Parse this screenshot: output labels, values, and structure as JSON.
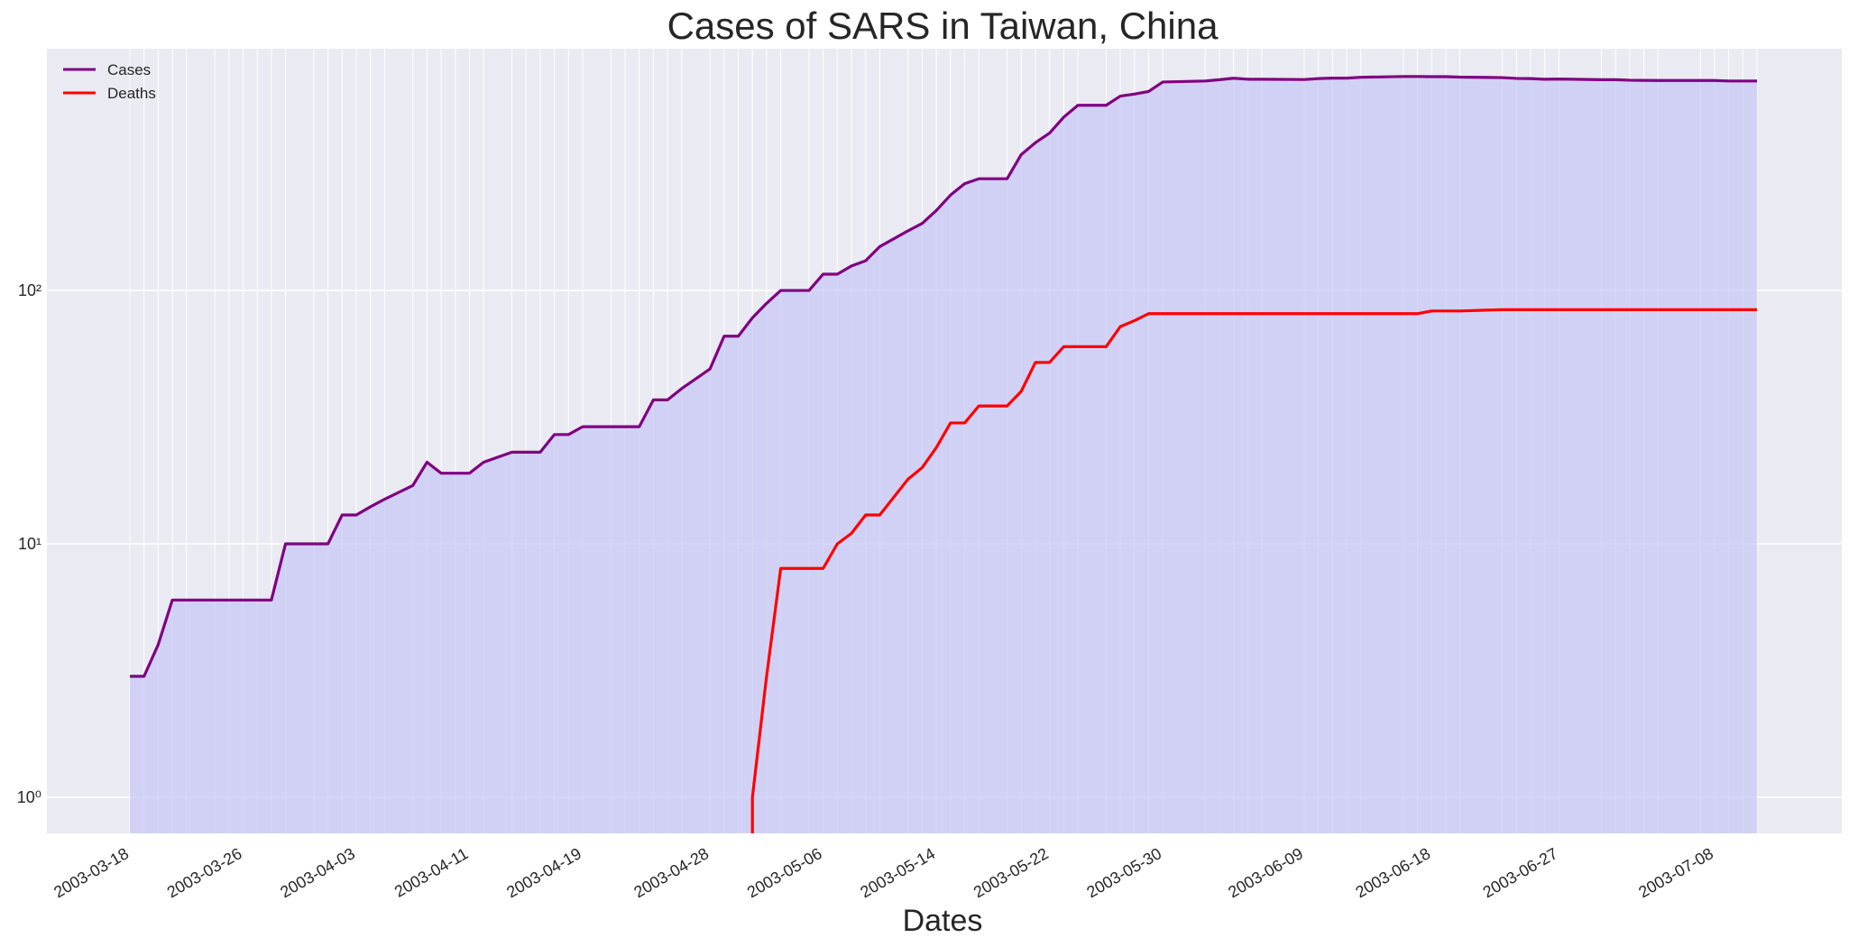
{
  "chart_data": {
    "type": "line",
    "title": "Cases of SARS in Taiwan, China",
    "xlabel": "Dates",
    "ylabel": "",
    "yscale": "log",
    "ylim": [
      0.72,
      900
    ],
    "grid": true,
    "legend_position": "top-left",
    "fill_under": "Cases",
    "colors": {
      "Cases": "#800080",
      "Deaths": "#ff0000",
      "fill": "#c8c8f5",
      "background": "#eaeaf2",
      "grid": "#ffffff"
    },
    "xtick_labels": [
      "2003-03-18",
      "2003-03-26",
      "2003-04-03",
      "2003-04-11",
      "2003-04-19",
      "2003-04-28",
      "2003-05-06",
      "2003-05-14",
      "2003-05-22",
      "2003-05-30",
      "2003-06-09",
      "2003-06-18",
      "2003-06-27",
      "2003-07-08"
    ],
    "ytick_labels": [
      {
        "value": 1,
        "label": "10⁰"
      },
      {
        "value": 10,
        "label": "10¹"
      },
      {
        "value": 100,
        "label": "10²"
      }
    ],
    "x": [
      "2003-03-18",
      "2003-03-19",
      "2003-03-20",
      "2003-03-21",
      "2003-03-22",
      "2003-03-24",
      "2003-03-25",
      "2003-03-26",
      "2003-03-27",
      "2003-03-28",
      "2003-03-29",
      "2003-03-31",
      "2003-04-01",
      "2003-04-02",
      "2003-04-03",
      "2003-04-04",
      "2003-04-05",
      "2003-04-07",
      "2003-04-08",
      "2003-04-09",
      "2003-04-10",
      "2003-04-11",
      "2003-04-12",
      "2003-04-14",
      "2003-04-15",
      "2003-04-16",
      "2003-04-17",
      "2003-04-18",
      "2003-04-19",
      "2003-04-21",
      "2003-04-22",
      "2003-04-23",
      "2003-04-24",
      "2003-04-25",
      "2003-04-26",
      "2003-04-28",
      "2003-04-29",
      "2003-04-30",
      "2003-05-01",
      "2003-05-02",
      "2003-05-03",
      "2003-05-05",
      "2003-05-06",
      "2003-05-07",
      "2003-05-08",
      "2003-05-09",
      "2003-05-10",
      "2003-05-12",
      "2003-05-13",
      "2003-05-14",
      "2003-05-15",
      "2003-05-16",
      "2003-05-17",
      "2003-05-19",
      "2003-05-20",
      "2003-05-21",
      "2003-05-22",
      "2003-05-23",
      "2003-05-24",
      "2003-05-26",
      "2003-05-27",
      "2003-05-28",
      "2003-05-29",
      "2003-05-30",
      "2003-06-02",
      "2003-06-03",
      "2003-06-04",
      "2003-06-05",
      "2003-06-06",
      "2003-06-09",
      "2003-06-10",
      "2003-06-11",
      "2003-06-12",
      "2003-06-13",
      "2003-06-16",
      "2003-06-17",
      "2003-06-18",
      "2003-06-19",
      "2003-06-20",
      "2003-06-23",
      "2003-06-24",
      "2003-06-25",
      "2003-06-26",
      "2003-06-27",
      "2003-06-30",
      "2003-07-01",
      "2003-07-02",
      "2003-07-03",
      "2003-07-04",
      "2003-07-07",
      "2003-07-08",
      "2003-07-09",
      "2003-07-10",
      "2003-07-11"
    ],
    "series": [
      {
        "name": "Cases",
        "values": [
          3,
          3,
          4,
          6,
          6,
          6,
          6,
          6,
          6,
          6,
          10,
          10,
          10,
          13,
          13,
          14,
          15,
          17,
          21,
          19,
          19,
          19,
          21,
          23,
          23,
          23,
          27,
          27,
          29,
          29,
          29,
          29,
          37,
          37,
          41,
          49,
          66,
          66,
          78,
          89,
          100,
          100,
          116,
          116,
          125,
          131,
          149,
          172,
          184,
          207,
          238,
          264,
          276,
          276,
          344,
          383,
          418,
          483,
          538,
          538,
          585,
          596,
          610,
          665,
          671,
          679,
          688,
          682,
          682,
          680,
          686,
          689,
          689,
          694,
          699,
          699,
          698,
          698,
          695,
          692,
          687,
          686,
          682,
          683,
          679,
          679,
          676,
          675,
          674,
          674,
          674,
          671,
          671,
          671
        ]
      },
      {
        "name": "Deaths",
        "values": [
          0,
          0,
          0,
          0,
          0,
          0,
          0,
          0,
          0,
          0,
          0,
          0,
          0,
          0,
          0,
          0,
          0,
          0,
          0,
          0,
          0,
          0,
          0,
          0,
          0,
          0,
          0,
          0,
          0,
          0,
          0,
          0,
          0,
          0,
          0,
          0,
          0,
          0,
          1,
          3,
          8,
          8,
          8,
          10,
          11,
          13,
          13,
          18,
          20,
          24,
          30,
          30,
          35,
          35,
          40,
          52,
          52,
          60,
          60,
          60,
          72,
          76,
          81,
          81,
          81,
          81,
          81,
          81,
          81,
          81,
          81,
          81,
          81,
          81,
          81,
          81,
          83,
          83,
          83,
          84,
          84,
          84,
          84,
          84,
          84,
          84,
          84,
          84,
          84,
          84,
          84,
          84,
          84,
          84
        ]
      }
    ]
  }
}
